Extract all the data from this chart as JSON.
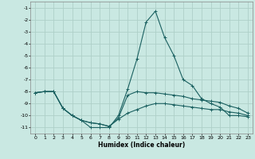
{
  "xlabel": "Humidex (Indice chaleur)",
  "x": [
    0,
    1,
    2,
    3,
    4,
    5,
    6,
    7,
    8,
    9,
    10,
    11,
    12,
    13,
    14,
    15,
    16,
    17,
    18,
    19,
    20,
    21,
    22,
    23
  ],
  "line1": [
    -8.1,
    -8.0,
    -8.0,
    -9.4,
    -10.0,
    -10.4,
    -11.0,
    -11.0,
    -11.0,
    -10.0,
    -7.8,
    -5.3,
    -2.2,
    -1.3,
    -3.5,
    -5.0,
    -7.0,
    -7.5,
    -8.6,
    -9.0,
    -9.3,
    -10.0,
    -10.0,
    -10.1
  ],
  "line2": [
    -8.1,
    -8.0,
    -8.0,
    -9.4,
    -10.0,
    -10.4,
    -10.6,
    -10.7,
    -10.9,
    -10.2,
    -8.3,
    -8.0,
    -8.1,
    -8.1,
    -8.2,
    -8.3,
    -8.4,
    -8.6,
    -8.7,
    -8.8,
    -8.9,
    -9.2,
    -9.4,
    -9.8
  ],
  "line3": [
    -8.1,
    -8.0,
    -8.0,
    -9.4,
    -10.0,
    -10.4,
    -10.6,
    -10.7,
    -10.9,
    -10.3,
    -9.8,
    -9.5,
    -9.2,
    -9.0,
    -9.0,
    -9.1,
    -9.2,
    -9.3,
    -9.4,
    -9.5,
    -9.5,
    -9.7,
    -9.8,
    -10.0
  ],
  "background_color": "#c9e8e2",
  "grid_color": "#aed0c8",
  "line_color": "#1a6060",
  "ylim": [
    -11.5,
    -0.5
  ],
  "xlim": [
    -0.5,
    23.5
  ],
  "yticks": [
    -1,
    -2,
    -3,
    -4,
    -5,
    -6,
    -7,
    -8,
    -9,
    -10,
    -11
  ],
  "xticks": [
    0,
    1,
    2,
    3,
    4,
    5,
    6,
    7,
    8,
    9,
    10,
    11,
    12,
    13,
    14,
    15,
    16,
    17,
    18,
    19,
    20,
    21,
    22,
    23
  ]
}
